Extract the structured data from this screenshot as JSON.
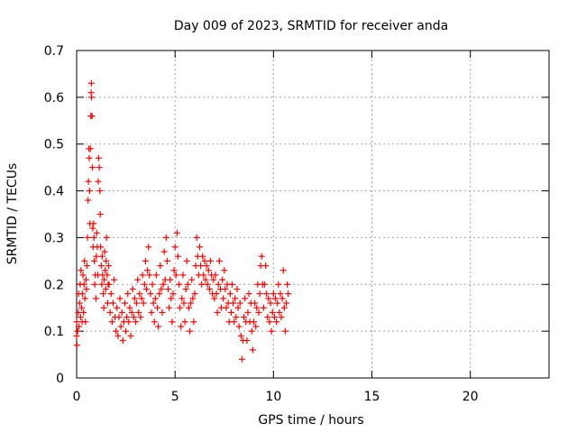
{
  "chart_data": {
    "type": "scatter",
    "title": "Day 009 of 2023, SRMTID for receiver anda",
    "xlabel": "GPS time / hours",
    "ylabel": "SRMTID / TECUs",
    "xlim": [
      0,
      24
    ],
    "ylim": [
      0,
      0.7
    ],
    "xticks": [
      0,
      5,
      10,
      15,
      20
    ],
    "yticks": [
      0,
      0.1,
      0.2,
      0.3,
      0.4,
      0.5,
      0.6,
      0.7
    ],
    "xtick_labels": [
      "0",
      "5",
      "10",
      "15",
      "20"
    ],
    "ytick_labels": [
      "0",
      "0.1",
      "0.2",
      "0.3",
      "0.4",
      "0.5",
      "0.6",
      "0.7"
    ],
    "grid": true,
    "marker": "+",
    "marker_color": "#ff0000",
    "series": [
      {
        "name": "SRMTID",
        "points": [
          [
            0.0,
            0.09
          ],
          [
            0.0,
            0.12
          ],
          [
            0.02,
            0.07
          ],
          [
            0.05,
            0.1
          ],
          [
            0.08,
            0.14
          ],
          [
            0.1,
            0.18
          ],
          [
            0.12,
            0.11
          ],
          [
            0.15,
            0.16
          ],
          [
            0.18,
            0.2
          ],
          [
            0.2,
            0.13
          ],
          [
            0.22,
            0.23
          ],
          [
            0.25,
            0.15
          ],
          [
            0.28,
            0.12
          ],
          [
            0.3,
            0.18
          ],
          [
            0.32,
            0.22
          ],
          [
            0.35,
            0.14
          ],
          [
            0.38,
            0.2
          ],
          [
            0.4,
            0.25
          ],
          [
            0.42,
            0.17
          ],
          [
            0.45,
            0.12
          ],
          [
            0.48,
            0.21
          ],
          [
            0.5,
            0.19
          ],
          [
            0.52,
            0.24
          ],
          [
            0.55,
            0.3
          ],
          [
            0.58,
            0.38
          ],
          [
            0.6,
            0.42
          ],
          [
            0.62,
            0.49
          ],
          [
            0.64,
            0.47
          ],
          [
            0.66,
            0.4
          ],
          [
            0.68,
            0.33
          ],
          [
            0.7,
            0.49
          ],
          [
            0.72,
            0.56
          ],
          [
            0.74,
            0.61
          ],
          [
            0.75,
            0.63
          ],
          [
            0.76,
            0.6
          ],
          [
            0.78,
            0.56
          ],
          [
            0.8,
            0.45
          ],
          [
            0.82,
            0.32
          ],
          [
            0.84,
            0.28
          ],
          [
            0.86,
            0.33
          ],
          [
            0.88,
            0.3
          ],
          [
            0.9,
            0.25
          ],
          [
            0.92,
            0.2
          ],
          [
            0.95,
            0.22
          ],
          [
            0.98,
            0.17
          ],
          [
            1.0,
            0.26
          ],
          [
            1.02,
            0.31
          ],
          [
            1.05,
            0.28
          ],
          [
            1.08,
            0.22
          ],
          [
            1.1,
            0.42
          ],
          [
            1.12,
            0.47
          ],
          [
            1.15,
            0.45
          ],
          [
            1.18,
            0.4
          ],
          [
            1.2,
            0.35
          ],
          [
            1.22,
            0.28
          ],
          [
            1.25,
            0.24
          ],
          [
            1.28,
            0.2
          ],
          [
            1.3,
            0.26
          ],
          [
            1.32,
            0.22
          ],
          [
            1.35,
            0.18
          ],
          [
            1.38,
            0.15
          ],
          [
            1.4,
            0.21
          ],
          [
            1.42,
            0.27
          ],
          [
            1.45,
            0.23
          ],
          [
            1.48,
            0.19
          ],
          [
            1.5,
            0.25
          ],
          [
            1.52,
            0.3
          ],
          [
            1.55,
            0.22
          ],
          [
            1.58,
            0.16
          ],
          [
            1.6,
            0.2
          ],
          [
            1.62,
            0.24
          ],
          [
            1.65,
            0.2
          ],
          [
            1.7,
            0.14
          ],
          [
            1.75,
            0.18
          ],
          [
            1.8,
            0.12
          ],
          [
            1.85,
            0.16
          ],
          [
            1.9,
            0.21
          ],
          [
            1.95,
            0.13
          ],
          [
            2.0,
            0.1
          ],
          [
            2.05,
            0.15
          ],
          [
            2.1,
            0.09
          ],
          [
            2.15,
            0.13
          ],
          [
            2.2,
            0.17
          ],
          [
            2.25,
            0.11
          ],
          [
            2.3,
            0.14
          ],
          [
            2.35,
            0.08
          ],
          [
            2.4,
            0.12
          ],
          [
            2.45,
            0.16
          ],
          [
            2.5,
            0.1
          ],
          [
            2.55,
            0.13
          ],
          [
            2.6,
            0.18
          ],
          [
            2.65,
            0.12
          ],
          [
            2.7,
            0.15
          ],
          [
            2.75,
            0.09
          ],
          [
            2.8,
            0.14
          ],
          [
            2.85,
            0.19
          ],
          [
            2.9,
            0.13
          ],
          [
            2.95,
            0.17
          ],
          [
            3.0,
            0.12
          ],
          [
            3.05,
            0.16
          ],
          [
            3.1,
            0.21
          ],
          [
            3.15,
            0.14
          ],
          [
            3.2,
            0.18
          ],
          [
            3.25,
            0.13
          ],
          [
            3.3,
            0.17
          ],
          [
            3.35,
            0.22
          ],
          [
            3.4,
            0.16
          ],
          [
            3.45,
            0.2
          ],
          [
            3.5,
            0.25
          ],
          [
            3.55,
            0.19
          ],
          [
            3.6,
            0.23
          ],
          [
            3.65,
            0.28
          ],
          [
            3.7,
            0.22
          ],
          [
            3.75,
            0.18
          ],
          [
            3.8,
            0.14
          ],
          [
            3.85,
            0.2
          ],
          [
            3.9,
            0.16
          ],
          [
            3.95,
            0.12
          ],
          [
            4.0,
            0.17
          ],
          [
            4.05,
            0.22
          ],
          [
            4.1,
            0.15
          ],
          [
            4.15,
            0.11
          ],
          [
            4.2,
            0.18
          ],
          [
            4.25,
            0.24
          ],
          [
            4.3,
            0.19
          ],
          [
            4.35,
            0.14
          ],
          [
            4.4,
            0.2
          ],
          [
            4.45,
            0.27
          ],
          [
            4.5,
            0.21
          ],
          [
            4.55,
            0.3
          ],
          [
            4.6,
            0.25
          ],
          [
            4.65,
            0.19
          ],
          [
            4.7,
            0.15
          ],
          [
            4.75,
            0.21
          ],
          [
            4.8,
            0.17
          ],
          [
            4.85,
            0.12
          ],
          [
            4.9,
            0.18
          ],
          [
            4.95,
            0.23
          ],
          [
            5.0,
            0.28
          ],
          [
            5.05,
            0.22
          ],
          [
            5.1,
            0.31
          ],
          [
            5.15,
            0.26
          ],
          [
            5.2,
            0.2
          ],
          [
            5.25,
            0.15
          ],
          [
            5.3,
            0.11
          ],
          [
            5.35,
            0.17
          ],
          [
            5.4,
            0.22
          ],
          [
            5.45,
            0.16
          ],
          [
            5.5,
            0.12
          ],
          [
            5.55,
            0.19
          ],
          [
            5.6,
            0.25
          ],
          [
            5.65,
            0.2
          ],
          [
            5.7,
            0.15
          ],
          [
            5.75,
            0.1
          ],
          [
            5.8,
            0.16
          ],
          [
            5.85,
            0.21
          ],
          [
            5.9,
            0.17
          ],
          [
            5.95,
            0.12
          ],
          [
            6.0,
            0.18
          ],
          [
            6.05,
            0.24
          ],
          [
            6.1,
            0.3
          ],
          [
            6.15,
            0.26
          ],
          [
            6.2,
            0.22
          ],
          [
            6.25,
            0.28
          ],
          [
            6.3,
            0.24
          ],
          [
            6.35,
            0.2
          ],
          [
            6.4,
            0.26
          ],
          [
            6.45,
            0.22
          ],
          [
            6.5,
            0.25
          ],
          [
            6.55,
            0.21
          ],
          [
            6.6,
            0.24
          ],
          [
            6.65,
            0.2
          ],
          [
            6.7,
            0.23
          ],
          [
            6.75,
            0.19
          ],
          [
            6.8,
            0.25
          ],
          [
            6.85,
            0.22
          ],
          [
            6.9,
            0.18
          ],
          [
            6.95,
            0.21
          ],
          [
            7.0,
            0.17
          ],
          [
            7.05,
            0.22
          ],
          [
            7.1,
            0.18
          ],
          [
            7.15,
            0.14
          ],
          [
            7.2,
            0.2
          ],
          [
            7.25,
            0.25
          ],
          [
            7.3,
            0.19
          ],
          [
            7.35,
            0.15
          ],
          [
            7.4,
            0.21
          ],
          [
            7.45,
            0.17
          ],
          [
            7.5,
            0.23
          ],
          [
            7.55,
            0.19
          ],
          [
            7.6,
            0.15
          ],
          [
            7.65,
            0.2
          ],
          [
            7.7,
            0.16
          ],
          [
            7.75,
            0.12
          ],
          [
            7.8,
            0.18
          ],
          [
            7.85,
            0.14
          ],
          [
            7.9,
            0.2
          ],
          [
            7.95,
            0.16
          ],
          [
            8.0,
            0.12
          ],
          [
            8.05,
            0.17
          ],
          [
            8.1,
            0.13
          ],
          [
            8.15,
            0.19
          ],
          [
            8.2,
            0.15
          ],
          [
            8.25,
            0.11
          ],
          [
            8.3,
            0.16
          ],
          [
            8.35,
            0.09
          ],
          [
            8.4,
            0.04
          ],
          [
            8.45,
            0.08
          ],
          [
            8.5,
            0.13
          ],
          [
            8.55,
            0.17
          ],
          [
            8.6,
            0.12
          ],
          [
            8.65,
            0.08
          ],
          [
            8.7,
            0.14
          ],
          [
            8.75,
            0.18
          ],
          [
            8.8,
            0.12
          ],
          [
            8.85,
            0.16
          ],
          [
            8.9,
            0.1
          ],
          [
            8.95,
            0.06
          ],
          [
            9.0,
            0.12
          ],
          [
            9.05,
            0.16
          ],
          [
            9.1,
            0.11
          ],
          [
            9.15,
            0.15
          ],
          [
            9.2,
            0.2
          ],
          [
            9.25,
            0.14
          ],
          [
            9.3,
            0.18
          ],
          [
            9.35,
            0.24
          ],
          [
            9.4,
            0.26
          ],
          [
            9.45,
            0.2
          ],
          [
            9.5,
            0.15
          ],
          [
            9.55,
            0.2
          ],
          [
            9.6,
            0.24
          ],
          [
            9.65,
            0.18
          ],
          [
            9.7,
            0.13
          ],
          [
            9.75,
            0.17
          ],
          [
            9.8,
            0.12
          ],
          [
            9.85,
            0.16
          ],
          [
            9.9,
            0.1
          ],
          [
            9.95,
            0.14
          ],
          [
            10.0,
            0.18
          ],
          [
            10.05,
            0.13
          ],
          [
            10.1,
            0.17
          ],
          [
            10.15,
            0.12
          ],
          [
            10.2,
            0.16
          ],
          [
            10.25,
            0.2
          ],
          [
            10.3,
            0.14
          ],
          [
            10.35,
            0.18
          ],
          [
            10.4,
            0.13
          ],
          [
            10.45,
            0.17
          ],
          [
            10.5,
            0.23
          ],
          [
            10.55,
            0.15
          ],
          [
            10.6,
            0.1
          ],
          [
            10.65,
            0.16
          ],
          [
            10.7,
            0.2
          ],
          [
            10.75,
            0.18
          ]
        ]
      }
    ]
  }
}
